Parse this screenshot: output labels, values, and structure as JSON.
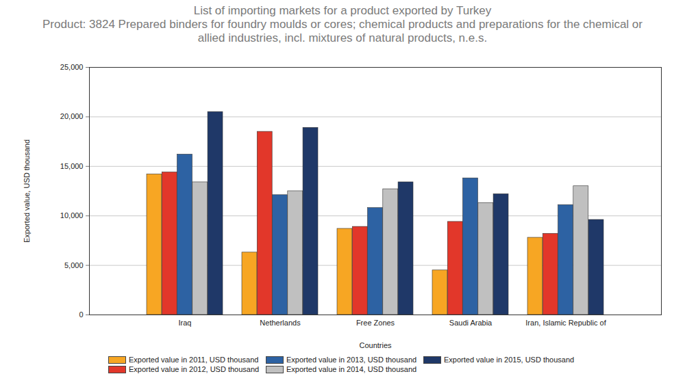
{
  "chart_data": {
    "type": "bar",
    "title": "List of importing markets for a product exported by Turkey",
    "subtitle": "Product: 3824 Prepared binders for foundry moulds or cores; chemical products and preparations for the chemical or allied industries, incl. mixtures of natural products, n.e.s.",
    "x_label": "Countries",
    "y_label": "Exported value, USD thousand",
    "categories": [
      "Iraq",
      "Netherlands",
      "Free Zones",
      "Saudi Arabia",
      "Iran, Islamic Republic of"
    ],
    "series": [
      {
        "name": "Exported value in 2011, USD thousand",
        "color": "#f7a623",
        "values": [
          14200,
          6300,
          8700,
          4500,
          7800
        ]
      },
      {
        "name": "Exported value in 2012, USD thousand",
        "color": "#e2372a",
        "values": [
          14400,
          18500,
          8900,
          9400,
          8200
        ]
      },
      {
        "name": "Exported value in 2013, USD thousand",
        "color": "#2d62a3",
        "values": [
          16200,
          12100,
          10800,
          13800,
          11100
        ]
      },
      {
        "name": "Exported value in 2014, USD thousand",
        "color": "#c0c0c0",
        "values": [
          13400,
          12500,
          12700,
          11300,
          13000
        ]
      },
      {
        "name": "Exported value in 2015, USD thousand",
        "color": "#1f3868",
        "values": [
          20500,
          18900,
          13400,
          12200,
          9600
        ]
      }
    ],
    "ylim": [
      0,
      25000
    ],
    "yticks": [
      0,
      {
        "value": 5000,
        "label": "5,000"
      },
      {
        "value": 10000,
        "label": "10,000"
      },
      {
        "value": 15000,
        "label": "15,000"
      },
      {
        "value": 20000,
        "label": "20,000"
      },
      {
        "value": 25000,
        "label": "25,000"
      }
    ],
    "grid": true,
    "legend": "bottom"
  }
}
